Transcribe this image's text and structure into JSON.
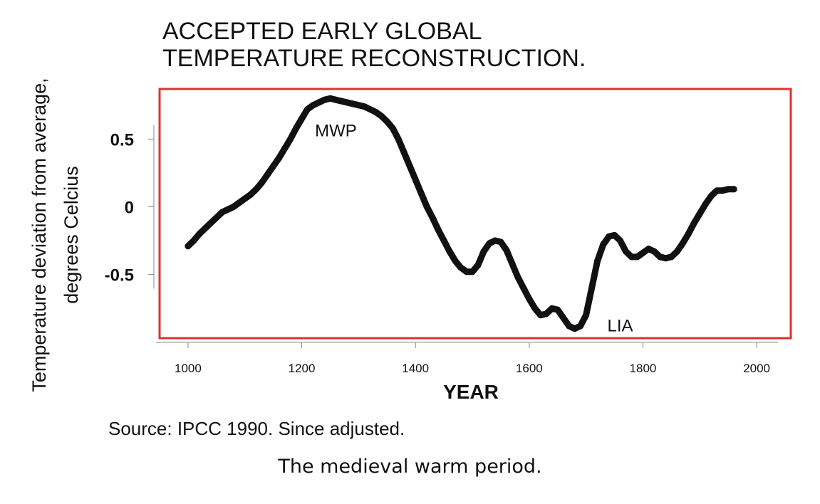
{
  "chart_data": {
    "type": "line",
    "title_lines": [
      "ACCEPTED EARLY GLOBAL",
      "TEMPERATURE RECONSTRUCTION."
    ],
    "xlabel": "YEAR",
    "ylabel_lines": [
      "Temperature deviation from average,",
      "degrees Celcius"
    ],
    "xlim": [
      950,
      2060
    ],
    "ylim": [
      -0.97,
      0.87
    ],
    "x_ticks": [
      1000,
      1200,
      1400,
      1600,
      1800,
      2000
    ],
    "y_ticks": [
      {
        "value": 0.5,
        "label": "0.5"
      },
      {
        "value": 0,
        "label": "0"
      },
      {
        "value": -0.5,
        "label": "-0.5"
      }
    ],
    "series": [
      {
        "x": [
          1000,
          1010,
          1020,
          1030,
          1040,
          1050,
          1060,
          1070,
          1080,
          1090,
          1100,
          1110,
          1120,
          1130,
          1140,
          1150,
          1160,
          1170,
          1180,
          1190,
          1200,
          1210,
          1220,
          1230,
          1240,
          1250,
          1260,
          1270,
          1280,
          1290,
          1300,
          1310,
          1320,
          1330,
          1340,
          1350,
          1360,
          1370,
          1380,
          1390,
          1400,
          1410,
          1420,
          1430,
          1440,
          1450,
          1460,
          1470,
          1480,
          1490,
          1500,
          1510,
          1520,
          1530,
          1540,
          1550,
          1560,
          1570,
          1580,
          1590,
          1600,
          1610,
          1620,
          1630,
          1640,
          1650,
          1660,
          1670,
          1680,
          1690,
          1700,
          1710,
          1720,
          1730,
          1740,
          1750,
          1760,
          1770,
          1780,
          1790,
          1800,
          1810,
          1820,
          1830,
          1840,
          1850,
          1860,
          1870,
          1880,
          1890,
          1900,
          1910,
          1920,
          1930,
          1940,
          1950,
          1960
        ],
        "y": [
          -0.29,
          -0.25,
          -0.2,
          -0.16,
          -0.12,
          -0.08,
          -0.04,
          -0.02,
          0.0,
          0.03,
          0.06,
          0.09,
          0.13,
          0.18,
          0.24,
          0.3,
          0.36,
          0.43,
          0.5,
          0.58,
          0.65,
          0.72,
          0.75,
          0.77,
          0.79,
          0.8,
          0.79,
          0.78,
          0.77,
          0.76,
          0.75,
          0.74,
          0.72,
          0.7,
          0.67,
          0.63,
          0.58,
          0.5,
          0.4,
          0.3,
          0.2,
          0.1,
          0.0,
          -0.08,
          -0.17,
          -0.25,
          -0.33,
          -0.4,
          -0.45,
          -0.48,
          -0.48,
          -0.43,
          -0.33,
          -0.27,
          -0.25,
          -0.26,
          -0.32,
          -0.42,
          -0.52,
          -0.6,
          -0.68,
          -0.75,
          -0.8,
          -0.79,
          -0.75,
          -0.76,
          -0.82,
          -0.88,
          -0.9,
          -0.88,
          -0.8,
          -0.6,
          -0.4,
          -0.28,
          -0.22,
          -0.21,
          -0.25,
          -0.33,
          -0.37,
          -0.37,
          -0.34,
          -0.31,
          -0.33,
          -0.37,
          -0.38,
          -0.37,
          -0.33,
          -0.27,
          -0.2,
          -0.12,
          -0.05,
          0.02,
          0.08,
          0.12,
          0.12,
          0.13,
          0.13
        ]
      }
    ],
    "annotations": [
      {
        "text": "MWP",
        "x": 1260,
        "y": 0.52
      },
      {
        "text": "LIA",
        "x": 1760,
        "y": -0.92
      }
    ],
    "source": "Source: IPCC 1990. Since adjusted.",
    "colors": {
      "frame": "#e03030",
      "line": "#111111"
    },
    "legend": "none",
    "grid": false
  },
  "caption": "The medieval warm period."
}
